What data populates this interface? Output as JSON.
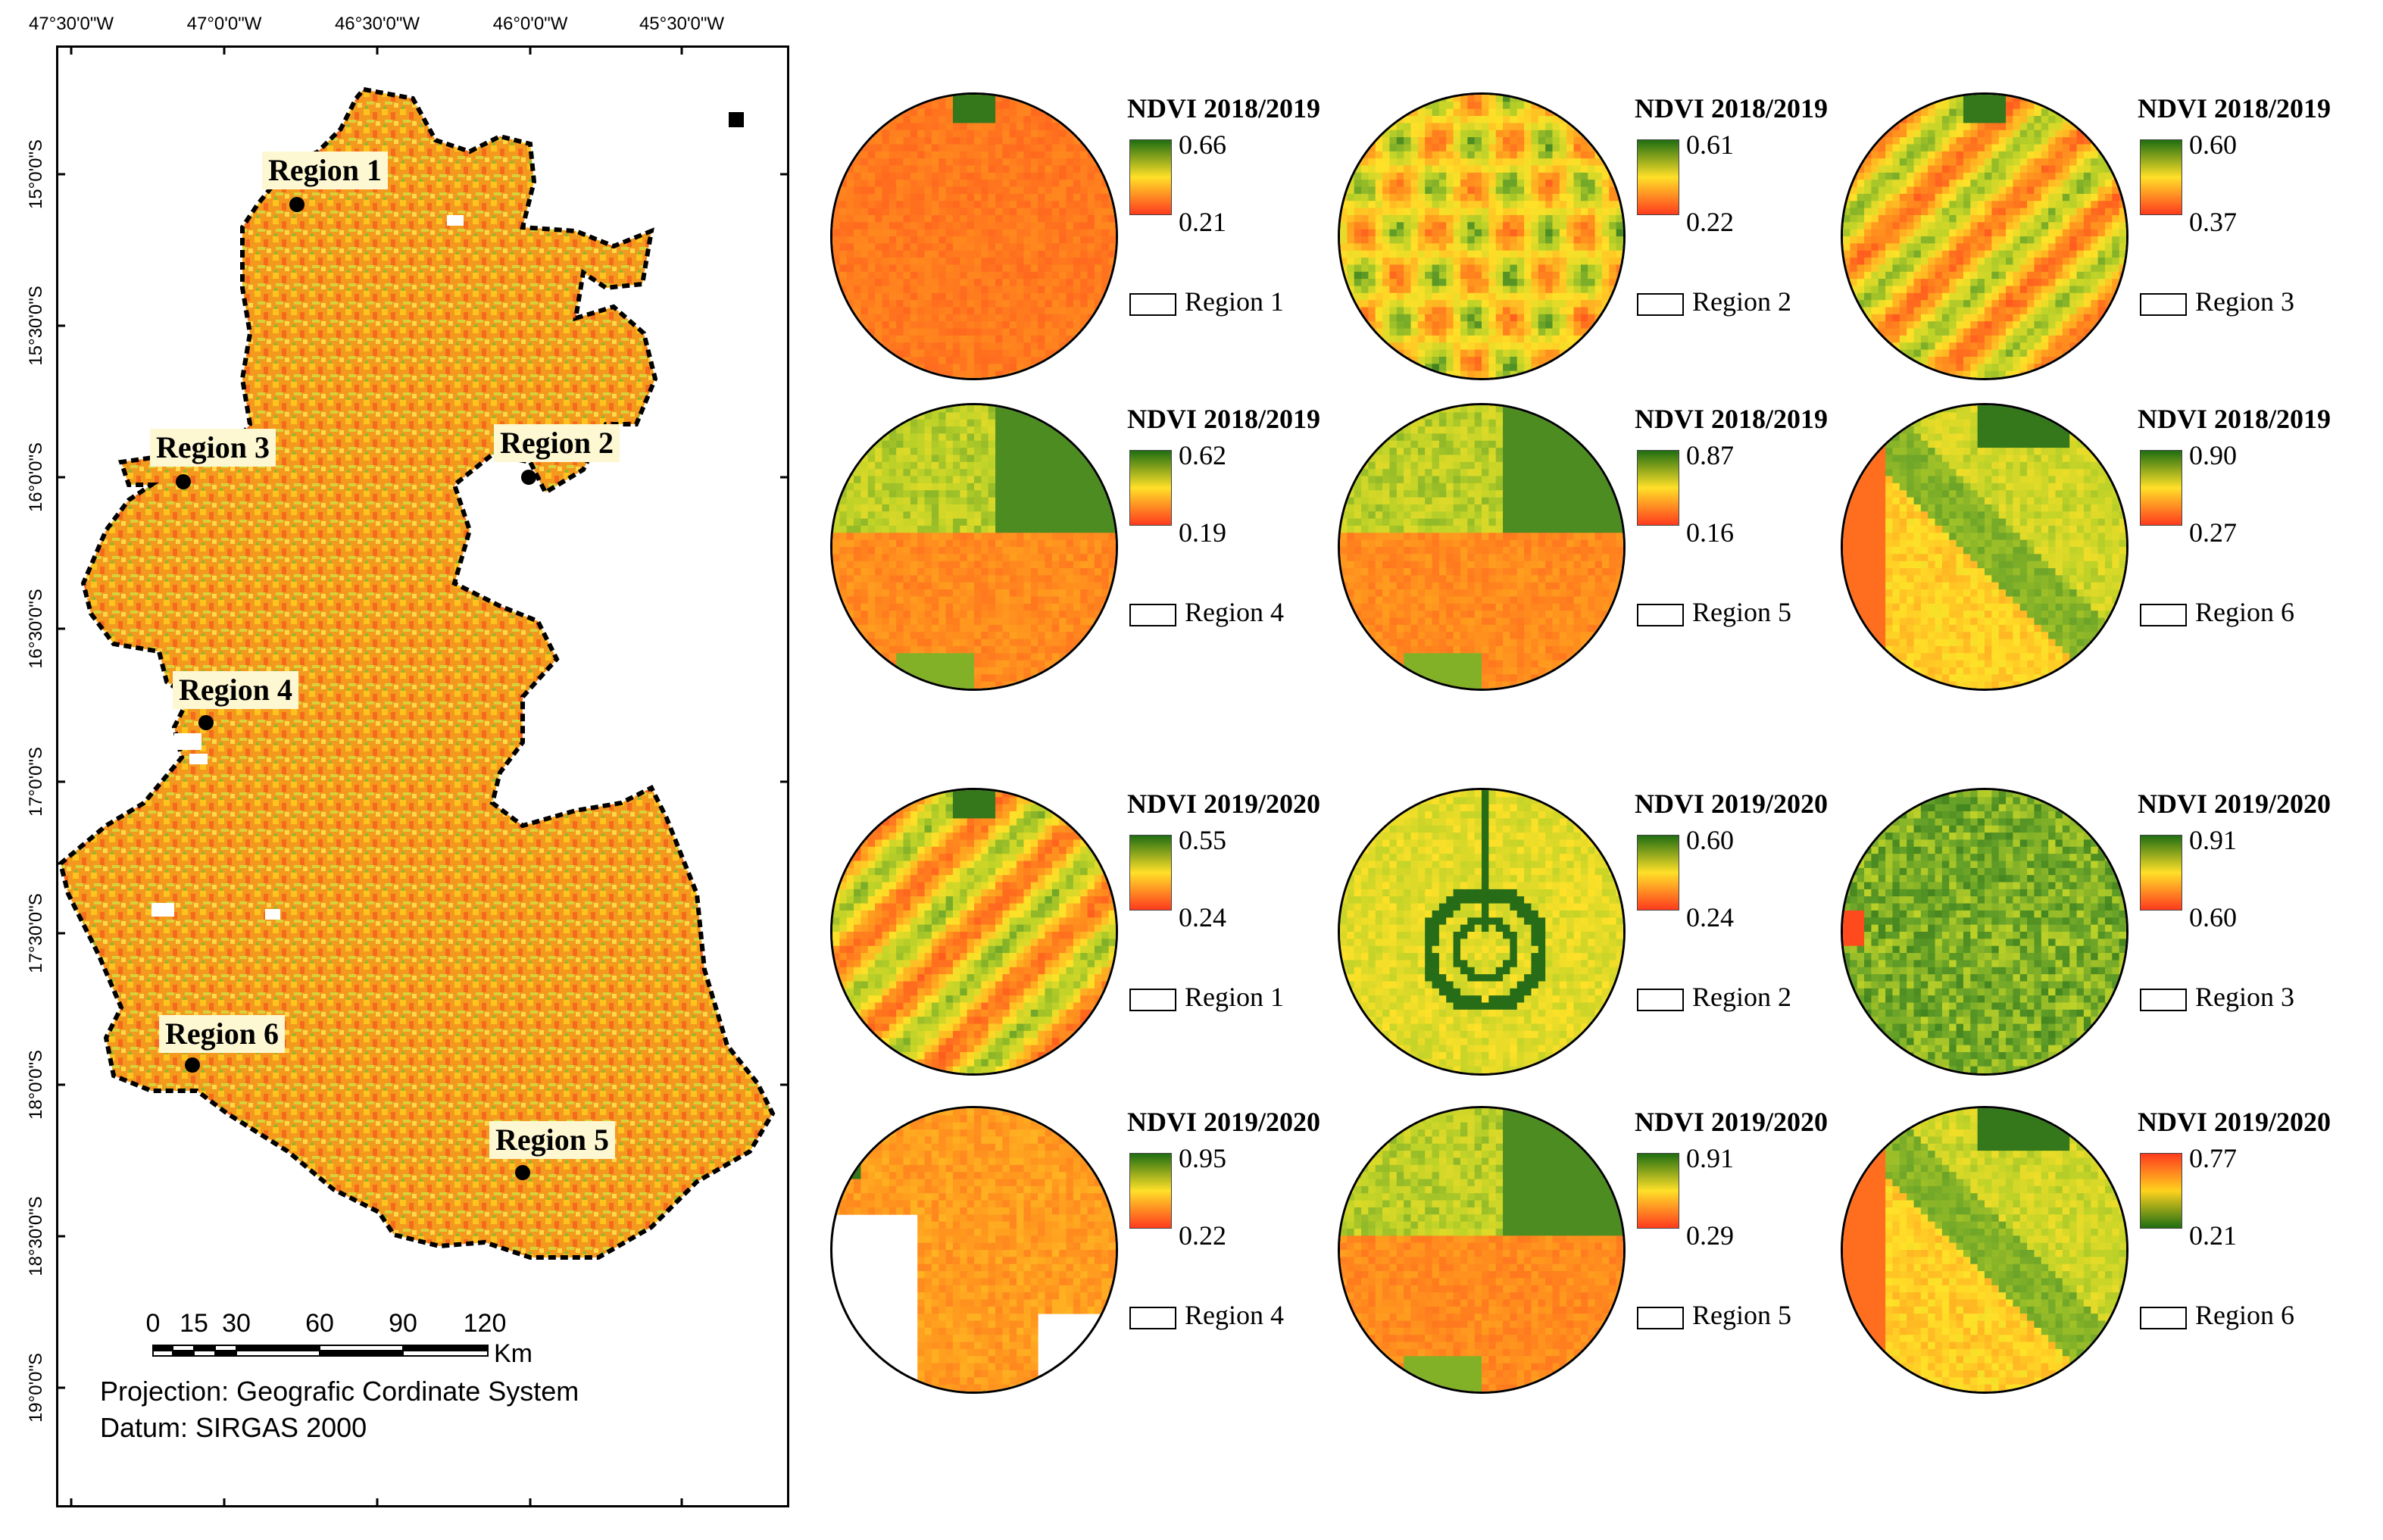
{
  "map": {
    "top_coords": [
      "47°30'0\"W",
      "47°0'0\"W",
      "46°30'0\"W",
      "46°0'0\"W",
      "45°30'0\"W"
    ],
    "left_coords": [
      "15°0'0\"S",
      "15°30'0\"S",
      "16°0'0\"S",
      "16°30'0\"S",
      "17°0'0\"S",
      "17°30'0\"S",
      "18°0'0\"S",
      "18°30'0\"S",
      "19°0'0\"S"
    ],
    "regions": [
      "Region 1",
      "Region 2",
      "Region 3",
      "Region 4",
      "Region 5",
      "Region 6"
    ],
    "scale_labels": [
      "0",
      "15",
      "30",
      "60",
      "90",
      "120"
    ],
    "scale_unit": "Km",
    "projection": "Projection: Geografic Cordinate System",
    "datum": "Datum: SIRGAS 2000",
    "colors": {
      "low": "#ff4a1e",
      "mid": "#ffd21e",
      "high": "#1f6e12",
      "outline": "#000000"
    }
  },
  "panels": [
    {
      "title": "NDVI 2018/2019",
      "max": "0.66",
      "min": "0.21",
      "region": "Region 1",
      "ramp": "normal",
      "style": "orange"
    },
    {
      "title": "NDVI 2018/2019",
      "max": "0.61",
      "min": "0.22",
      "region": "Region 2",
      "ramp": "normal",
      "style": "mixed"
    },
    {
      "title": "NDVI 2018/2019",
      "max": "0.60",
      "min": "0.37",
      "region": "Region 3",
      "ramp": "normal",
      "style": "stripes"
    },
    {
      "title": "NDVI 2018/2019",
      "max": "0.62",
      "min": "0.19",
      "region": "Region 4",
      "ramp": "normal",
      "style": "fields"
    },
    {
      "title": "NDVI 2018/2019",
      "max": "0.87",
      "min": "0.16",
      "region": "Region 5",
      "ramp": "normal",
      "style": "fields"
    },
    {
      "title": "NDVI 2018/2019",
      "max": "0.90",
      "min": "0.27",
      "region": "Region 6",
      "ramp": "normal",
      "style": "diagonal"
    },
    {
      "title": "NDVI 2019/2020",
      "max": "0.55",
      "min": "0.24",
      "region": "Region 1",
      "ramp": "normal",
      "style": "stripes"
    },
    {
      "title": "NDVI 2019/2020",
      "max": "0.60",
      "min": "0.24",
      "region": "Region 2",
      "ramp": "normal",
      "style": "pivot"
    },
    {
      "title": "NDVI 2019/2020",
      "max": "0.91",
      "min": "0.60",
      "region": "Region 3",
      "ramp": "normal",
      "style": "green"
    },
    {
      "title": "NDVI 2019/2020",
      "max": "0.95",
      "min": "0.22",
      "region": "Region 4",
      "ramp": "normal",
      "style": "orangewhite"
    },
    {
      "title": "NDVI 2019/2020",
      "max": "0.91",
      "min": "0.29",
      "region": "Region 5",
      "ramp": "normal",
      "style": "fields"
    },
    {
      "title": "NDVI 2019/2020",
      "max": "0.77",
      "min": "0.21",
      "region": "Region 6",
      "ramp": "reversed",
      "style": "diagonal"
    }
  ]
}
